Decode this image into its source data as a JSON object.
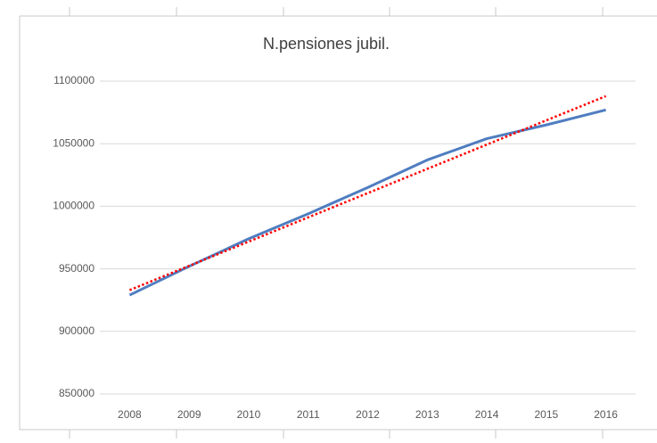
{
  "chart_data": {
    "type": "line",
    "title": "N.pensiones jubil.",
    "categories": [
      "2008",
      "2009",
      "2010",
      "2011",
      "2012",
      "2013",
      "2014",
      "2015",
      "2016"
    ],
    "series": [
      {
        "color": "#4f7dc0",
        "style": "solid",
        "values": [
          929000,
          952000,
          974000,
          994000,
          1015000,
          1037000,
          1054000,
          1065000,
          1077000
        ]
      },
      {
        "color": "#ff0000",
        "style": "dotted",
        "values": [
          933000,
          952375,
          971750,
          991125,
          1010500,
          1029875,
          1049250,
          1068625,
          1088000
        ]
      }
    ],
    "ylim": [
      850000,
      1100000
    ],
    "yticks": [
      850000,
      900000,
      950000,
      1000000,
      1050000,
      1100000
    ],
    "grid": true
  }
}
